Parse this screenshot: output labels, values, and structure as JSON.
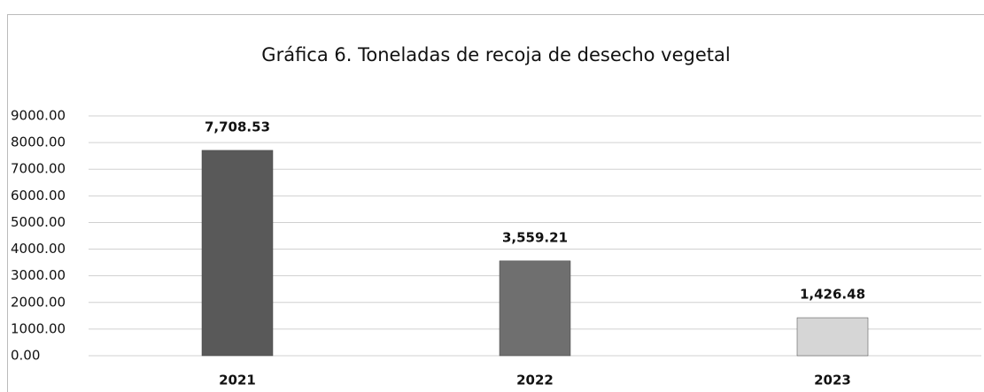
{
  "chart_data": {
    "type": "bar",
    "title": "Gráfica 6. Toneladas de recoja de desecho vegetal",
    "categories": [
      "2021",
      "2022",
      "2023"
    ],
    "values": [
      7708.53,
      3559.21,
      1426.48
    ],
    "value_labels": [
      "7,708.53",
      "3,559.21",
      "1,426.48"
    ],
    "colors": [
      "#595959",
      "#6f6f6f",
      "#d6d6d6"
    ],
    "ylim": [
      0,
      9000
    ],
    "yticks": [
      {
        "value": 0,
        "label": "0.00"
      },
      {
        "value": 1000,
        "label": "1000.00"
      },
      {
        "value": 2000,
        "label": "2000.00"
      },
      {
        "value": 3000,
        "label": "3000.00"
      },
      {
        "value": 4000,
        "label": "4000.00"
      },
      {
        "value": 5000,
        "label": "5000.00"
      },
      {
        "value": 6000,
        "label": "6000.00"
      },
      {
        "value": 7000,
        "label": "7000.00"
      },
      {
        "value": 8000,
        "label": "8000.00"
      },
      {
        "value": 9000,
        "label": "9000.00"
      }
    ],
    "grid": true
  }
}
